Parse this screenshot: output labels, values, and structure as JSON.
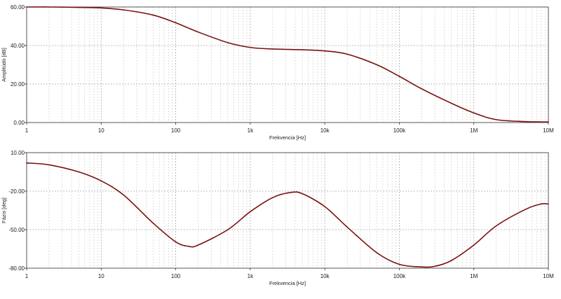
{
  "chart_data": [
    {
      "type": "line",
      "xscale": "log",
      "xlim": [
        1,
        10000000
      ],
      "ylim": [
        0,
        60
      ],
      "xlabel": "Frekvencia [Hz]",
      "ylabel": "Amplitúdó [dB]",
      "x_tick_labels": [
        "1",
        "10",
        "100",
        "1k",
        "10k",
        "100k",
        "1M",
        "10M"
      ],
      "y_tick_labels": [
        "0.00",
        "20.00",
        "40.00",
        "60.00"
      ],
      "y_tick_values": [
        0,
        20,
        40,
        60
      ],
      "grid": true,
      "colors": {
        "line": "#7a1010",
        "grid": "#c8c8c8",
        "axis": "#333333"
      },
      "series": [
        {
          "x": [
            1,
            2,
            5,
            10,
            20,
            50,
            100,
            200,
            500,
            1000,
            2000,
            5000,
            10000,
            20000,
            50000,
            100000,
            200000,
            500000,
            1000000,
            2000000,
            5000000,
            10000000
          ],
          "y": [
            60,
            60,
            59.8,
            59.5,
            58.5,
            55.8,
            51.8,
            47,
            41.5,
            39,
            38.2,
            37.8,
            37.2,
            35.5,
            30,
            24,
            17.5,
            10,
            5,
            1.5,
            0.5,
            0.3
          ]
        }
      ]
    },
    {
      "type": "line",
      "xscale": "log",
      "xlim": [
        1,
        10000000
      ],
      "ylim": [
        -80,
        10
      ],
      "xlabel": "Frekvencia [Hz]",
      "ylabel": "Fázis [deg]",
      "x_tick_labels": [
        "1",
        "10",
        "100",
        "1k",
        "10k",
        "100k",
        "1M",
        "10M"
      ],
      "y_tick_labels": [
        "10.00",
        "-20.00",
        "-50.00",
        "-80.00"
      ],
      "y_tick_values": [
        10,
        -20,
        -50,
        -80
      ],
      "grid": true,
      "colors": {
        "line": "#7a1010",
        "grid": "#c8c8c8",
        "axis": "#333333"
      },
      "series": [
        {
          "x": [
            1,
            2,
            5,
            10,
            20,
            50,
            100,
            150,
            200,
            500,
            1000,
            2000,
            3500,
            5000,
            10000,
            20000,
            50000,
            100000,
            200000,
            300000,
            500000,
            1000000,
            2000000,
            5000000,
            8000000,
            10000000
          ],
          "y": [
            2,
            0.5,
            -5,
            -12,
            -23,
            -45,
            -59.5,
            -63,
            -62,
            -50,
            -36,
            -25,
            -21,
            -22,
            -32,
            -48,
            -68,
            -77,
            -79,
            -78.5,
            -74,
            -62,
            -47,
            -34,
            -30,
            -30
          ]
        }
      ]
    }
  ]
}
